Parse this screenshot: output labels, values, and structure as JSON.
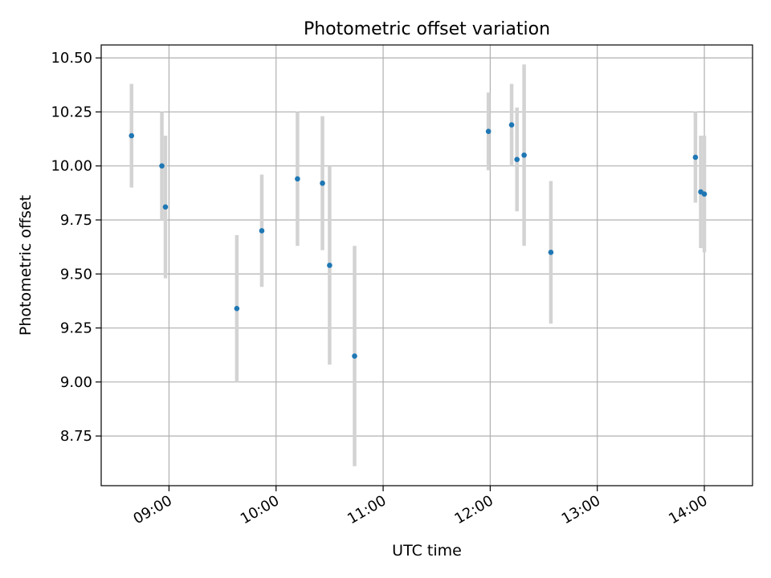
{
  "chart_data": {
    "type": "scatter",
    "title": "Photometric offset variation",
    "xlabel": "UTC time",
    "ylabel": "Photometric offset",
    "grid": true,
    "legend": "none",
    "xlim": [
      "08:22",
      "14:27"
    ],
    "ylim": [
      8.52,
      10.56
    ],
    "x_ticks": [
      "09:00",
      "10:00",
      "11:00",
      "12:00",
      "13:00",
      "14:00"
    ],
    "y_ticks": [
      "8.75",
      "9.00",
      "9.25",
      "9.50",
      "9.75",
      "10.00",
      "10.25",
      "10.50"
    ],
    "marker_color": "#1f77b4",
    "errorbar_color": "#d3d3d3",
    "points": [
      {
        "time": "08:39",
        "value": 10.14,
        "err": 0.24
      },
      {
        "time": "08:56",
        "value": 10.0,
        "err": 0.25
      },
      {
        "time": "08:58",
        "value": 9.81,
        "err": 0.33
      },
      {
        "time": "09:38",
        "value": 9.34,
        "err": 0.34
      },
      {
        "time": "09:52",
        "value": 9.7,
        "err": 0.26
      },
      {
        "time": "10:12",
        "value": 9.94,
        "err": 0.31
      },
      {
        "time": "10:26",
        "value": 9.92,
        "err": 0.31
      },
      {
        "time": "10:30",
        "value": 9.54,
        "err": 0.46
      },
      {
        "time": "10:44",
        "value": 9.12,
        "err": 0.51
      },
      {
        "time": "11:59",
        "value": 10.16,
        "err": 0.18
      },
      {
        "time": "12:12",
        "value": 10.19,
        "err": 0.19
      },
      {
        "time": "12:15",
        "value": 10.03,
        "err": 0.24
      },
      {
        "time": "12:19",
        "value": 10.05,
        "err": 0.42
      },
      {
        "time": "12:34",
        "value": 9.6,
        "err": 0.33
      },
      {
        "time": "13:55",
        "value": 10.04,
        "err": 0.21
      },
      {
        "time": "13:58",
        "value": 9.88,
        "err": 0.26
      },
      {
        "time": "14:00",
        "value": 9.87,
        "err": 0.27
      }
    ]
  }
}
